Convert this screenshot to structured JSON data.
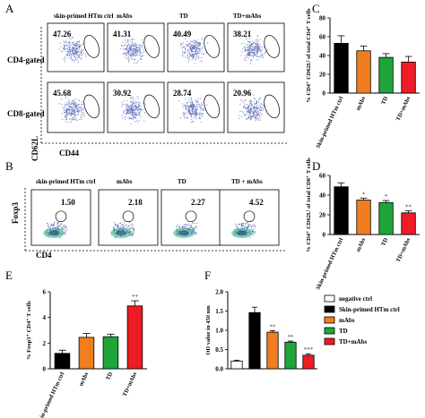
{
  "panel_labels": [
    "A",
    "B",
    "C",
    "D",
    "E",
    "F"
  ],
  "groups": [
    "skin-primed HTm ctrl",
    "mAbs",
    "TD",
    "TD+mAbs"
  ],
  "groups_b": [
    "skin-primed HTm ctrl",
    "mAbs",
    "TD",
    "TD + mAbs"
  ],
  "panel_a": {
    "rows": [
      "CD4-gated",
      "CD8-gated"
    ],
    "x_axis": "CD44",
    "y_axis": "CD62L",
    "cd4_values": [
      "47.26",
      "41.31",
      "40.49",
      "38.21"
    ],
    "cd8_values": [
      "45.68",
      "30.92",
      "28.74",
      "20.96"
    ]
  },
  "panel_b": {
    "x_axis": "CD4",
    "y_axis": "Foxp3",
    "values": [
      "1.50",
      "2.18",
      "2.27",
      "4.52"
    ]
  },
  "colors": {
    "ctrl": "#000000",
    "mabs": "#f07d1e",
    "td": "#1fa53a",
    "tdmabs": "#ee1c24",
    "negative": "#ffffff",
    "dots": "#4f5fb4"
  },
  "chart_data": [
    {
      "panel": "C",
      "type": "bar",
      "ylabel": "% CD4⁺ CD62Lˡ of total CD4⁺ T cells",
      "ylim": [
        0,
        80
      ],
      "yticks": [
        "0",
        "20",
        "40",
        "60",
        "80"
      ],
      "categories": [
        "Skin-primed HTm ctrl",
        "mAbs",
        "TD",
        "TD+mAbs"
      ],
      "values": [
        53,
        45,
        38,
        33
      ],
      "errors": [
        8,
        5,
        4,
        6
      ],
      "colors": [
        "#000000",
        "#f07d1e",
        "#1fa53a",
        "#ee1c24"
      ],
      "significance": [
        "",
        "",
        "",
        ""
      ]
    },
    {
      "panel": "D",
      "type": "bar",
      "ylabel": "% CD4⁺ CD62Lˡ of total CD8⁺ T cells",
      "ylim": [
        0,
        60
      ],
      "yticks": [
        "0",
        "20",
        "40",
        "60"
      ],
      "categories": [
        "Skin-primed HTm ctrl",
        "mAbs",
        "TD",
        "TD+mAbs"
      ],
      "values": [
        48.5,
        35,
        32.5,
        22
      ],
      "errors": [
        4,
        2,
        2,
        2
      ],
      "colors": [
        "#000000",
        "#f07d1e",
        "#1fa53a",
        "#ee1c24"
      ],
      "significance": [
        "",
        "*",
        "*",
        "**"
      ]
    },
    {
      "panel": "E",
      "type": "bar",
      "ylabel": "% Foxp3⁺ CD4⁺ T cells",
      "ylim": [
        0,
        6
      ],
      "yticks": [
        "0",
        "2",
        "4",
        "6"
      ],
      "categories": [
        "Skin-primed HTm ctrl",
        "mAbs",
        "TD",
        "TD+mAbs"
      ],
      "values": [
        1.2,
        2.45,
        2.5,
        4.9
      ],
      "errors": [
        0.25,
        0.3,
        0.2,
        0.4
      ],
      "colors": [
        "#000000",
        "#f07d1e",
        "#1fa53a",
        "#ee1c24"
      ],
      "significance": [
        "",
        "",
        "",
        "**"
      ]
    },
    {
      "panel": "F",
      "type": "bar",
      "ylabel": "OD value in 450 nm",
      "ylim": [
        0,
        2.0
      ],
      "yticks": [
        "0.0",
        "0.5",
        "1.0",
        "1.5",
        "2.0"
      ],
      "categories": [
        "negative ctrl",
        "Skin-primed HTm ctrl",
        "mAbs",
        "TD",
        "TD+mAbs"
      ],
      "values": [
        0.2,
        1.46,
        0.95,
        0.69,
        0.35
      ],
      "errors": [
        0.02,
        0.14,
        0.04,
        0.03,
        0.04
      ],
      "colors": [
        "#ffffff",
        "#000000",
        "#f07d1e",
        "#1fa53a",
        "#ee1c24"
      ],
      "significance": [
        "",
        "",
        "**",
        "**",
        "***"
      ],
      "legend": [
        "negative ctrl",
        "Skin-primed HTm ctrl",
        "mAbs",
        "TD",
        "TD+mAbs"
      ]
    }
  ]
}
